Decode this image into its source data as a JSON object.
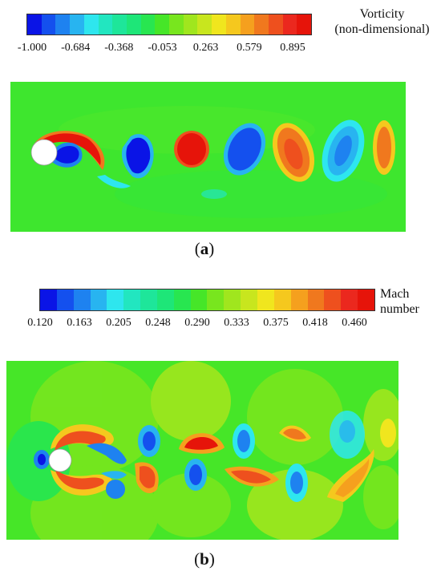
{
  "vorticity": {
    "title_line1": "Vorticity",
    "title_line2": "(non-dimensional)",
    "ticks": [
      "-1.000",
      "-0.684",
      "-0.368",
      "-0.053",
      "0.263",
      "0.579",
      "0.895"
    ],
    "colors": [
      "#0a14e6",
      "#1450ee",
      "#1e82f0",
      "#28b4f0",
      "#2ee6ee",
      "#22e6c0",
      "#1ee69a",
      "#1ee678",
      "#28e650",
      "#46e628",
      "#78e61e",
      "#a0e61e",
      "#c8e61e",
      "#f0e61e",
      "#f5c81e",
      "#f5a01e",
      "#f0781e",
      "#ee501e",
      "#eb281e",
      "#e6140a"
    ]
  },
  "caption_a": {
    "paren_open": "(",
    "letter": "a",
    "paren_close": ")"
  },
  "mach": {
    "title_line1": "Mach",
    "title_line2": "number",
    "ticks": [
      "0.120",
      "0.163",
      "0.205",
      "0.248",
      "0.290",
      "0.333",
      "0.375",
      "0.418",
      "0.460"
    ],
    "colors": [
      "#0a14e6",
      "#1450ee",
      "#1e82f0",
      "#28b4f0",
      "#2ee6ee",
      "#22e6c0",
      "#1ee69a",
      "#1ee678",
      "#28e650",
      "#46e628",
      "#78e61e",
      "#a0e61e",
      "#c8e61e",
      "#f0e61e",
      "#f5c81e",
      "#f5a01e",
      "#f0781e",
      "#ee501e",
      "#eb281e",
      "#e6140a"
    ]
  },
  "caption_b": {
    "paren_open": "(",
    "letter": "b",
    "paren_close": ")"
  }
}
